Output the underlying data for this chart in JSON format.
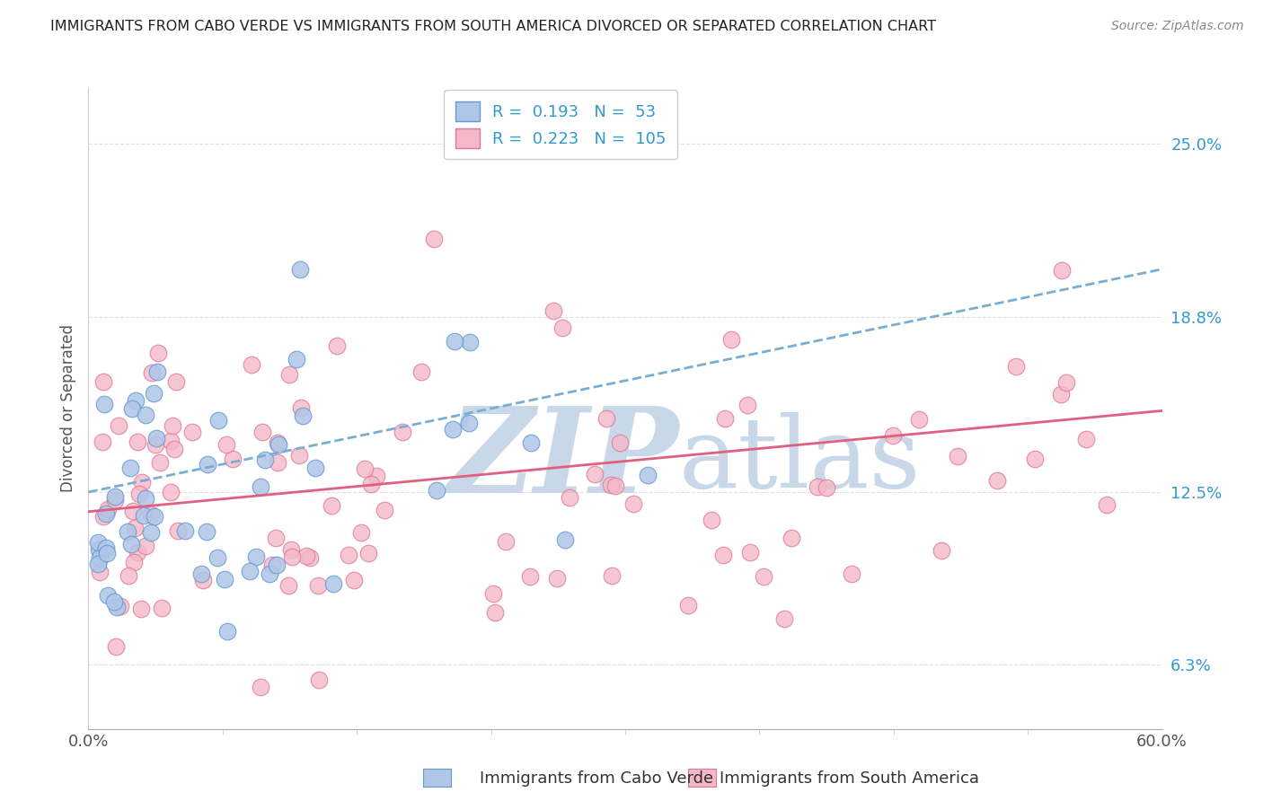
{
  "title": "IMMIGRANTS FROM CABO VERDE VS IMMIGRANTS FROM SOUTH AMERICA DIVORCED OR SEPARATED CORRELATION CHART",
  "source": "Source: ZipAtlas.com",
  "xlabel_cabo": "Immigrants from Cabo Verde",
  "xlabel_sa": "Immigrants from South America",
  "ylabel": "Divorced or Separated",
  "xlim": [
    0.0,
    0.6
  ],
  "ylim": [
    0.04,
    0.27
  ],
  "yticks": [
    0.063,
    0.125,
    0.188,
    0.25
  ],
  "ytick_labels": [
    "6.3%",
    "12.5%",
    "18.8%",
    "25.0%"
  ],
  "r_cabo": 0.193,
  "n_cabo": 53,
  "r_sa": 0.223,
  "n_sa": 105,
  "color_cabo_fill": "#aec6e8",
  "color_cabo_edge": "#6699cc",
  "color_sa_fill": "#f4b8c8",
  "color_sa_edge": "#dd7799",
  "color_trend_cabo": "#7aadd4",
  "color_trend_sa": "#e06080",
  "background_color": "#ffffff",
  "watermark_color": "#c8d8e8",
  "grid_color": "#e0e0e0",
  "title_color": "#222222",
  "source_color": "#888888",
  "axis_label_color": "#555555",
  "ytick_color": "#3399cc",
  "xtick_color": "#555555"
}
